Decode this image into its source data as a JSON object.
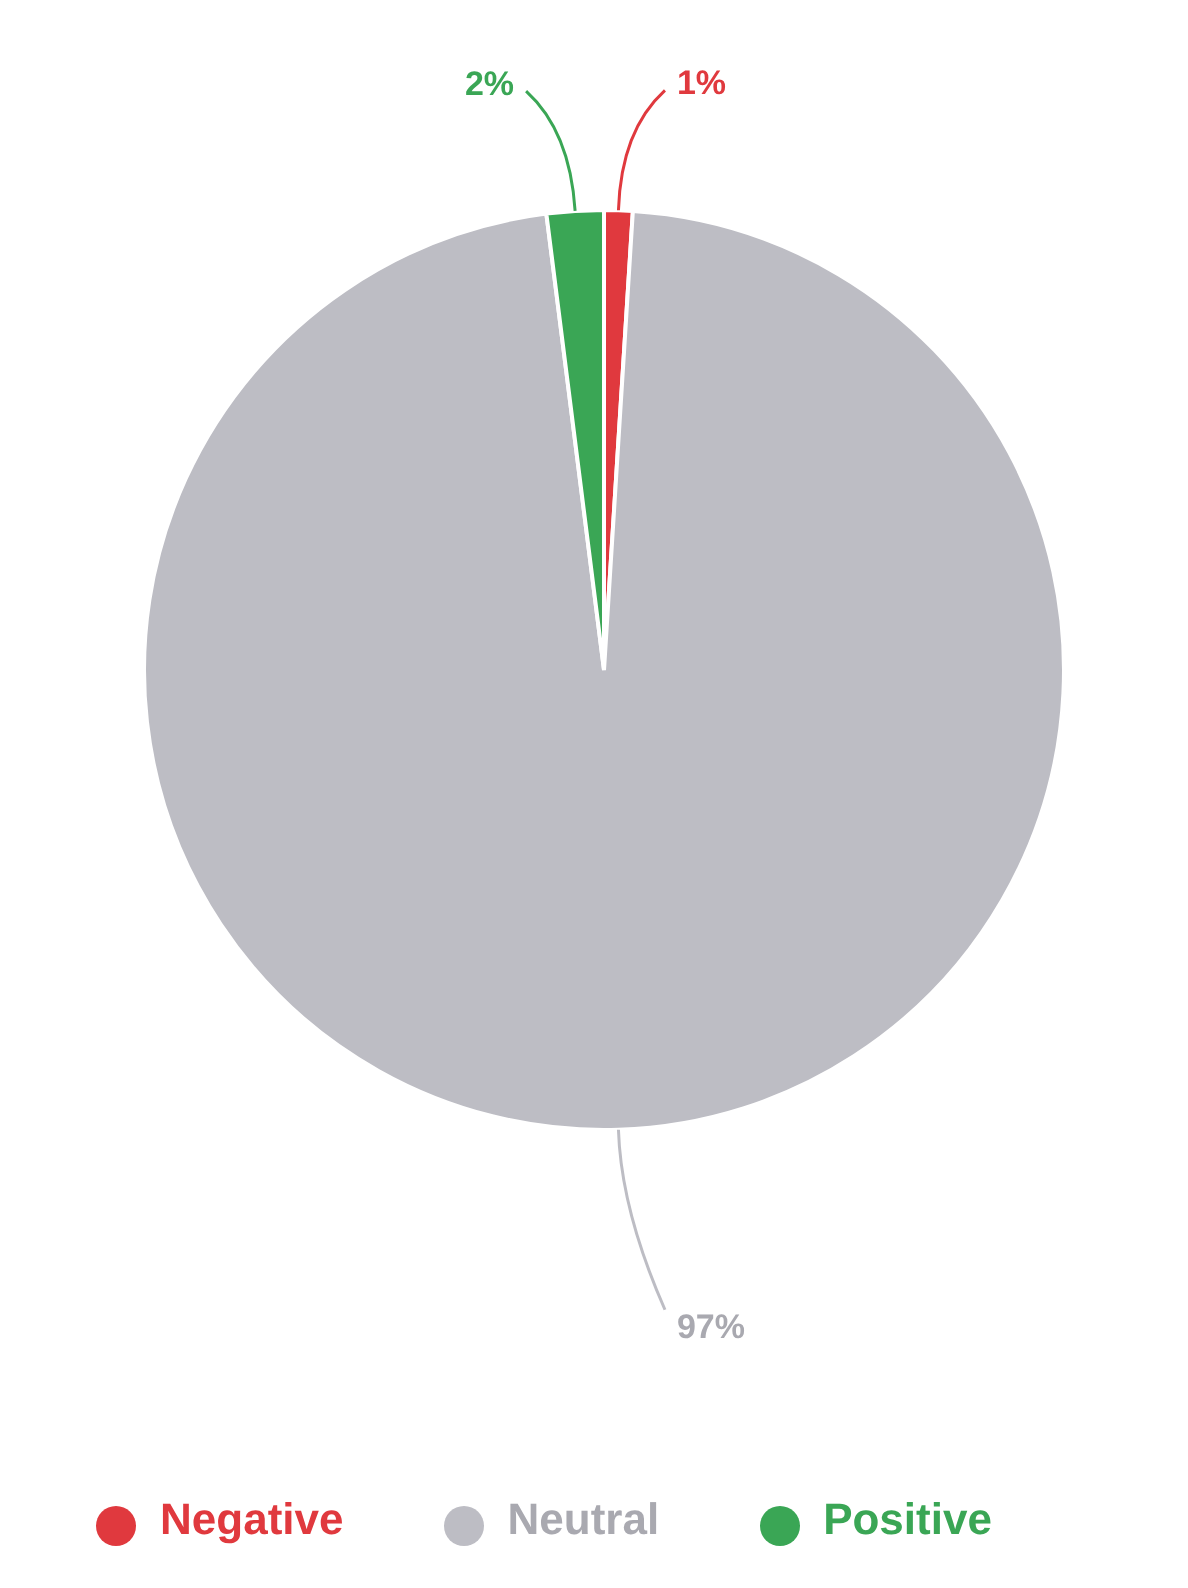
{
  "chart_data": {
    "type": "pie",
    "categories": [
      "Negative",
      "Neutral",
      "Positive"
    ],
    "values": [
      1,
      97,
      2
    ],
    "colors": [
      "#e0393e",
      "#bdbdc4",
      "#3aa655"
    ],
    "value_labels": [
      "1%",
      "97%",
      "2%"
    ],
    "legend": "bottom"
  }
}
